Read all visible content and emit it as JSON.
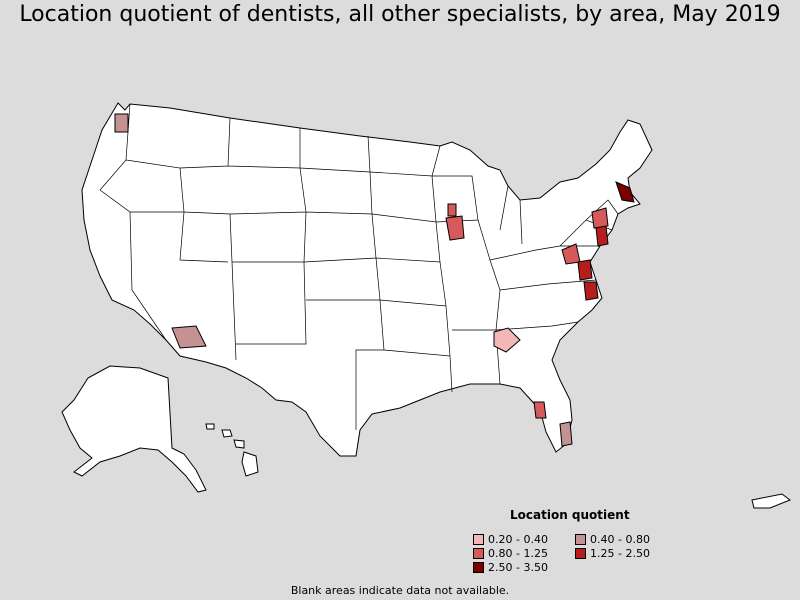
{
  "title": "Location quotient of dentists, all other specialists, by area, May 2019",
  "legend": {
    "title": "Location quotient",
    "items": [
      {
        "label": "0.20 - 0.40",
        "color": "#f4b6b6"
      },
      {
        "label": "0.40 - 0.80",
        "color": "#c49292"
      },
      {
        "label": "0.80 - 1.25",
        "color": "#d65a5a"
      },
      {
        "label": "1.25 - 2.50",
        "color": "#b61e1e"
      },
      {
        "label": "2.50 - 3.50",
        "color": "#7a0000"
      }
    ]
  },
  "footnote": "Blank areas indicate data not available.",
  "colors": {
    "background": "#dcdcdc",
    "land": "#ffffff",
    "border": "#000000"
  }
}
